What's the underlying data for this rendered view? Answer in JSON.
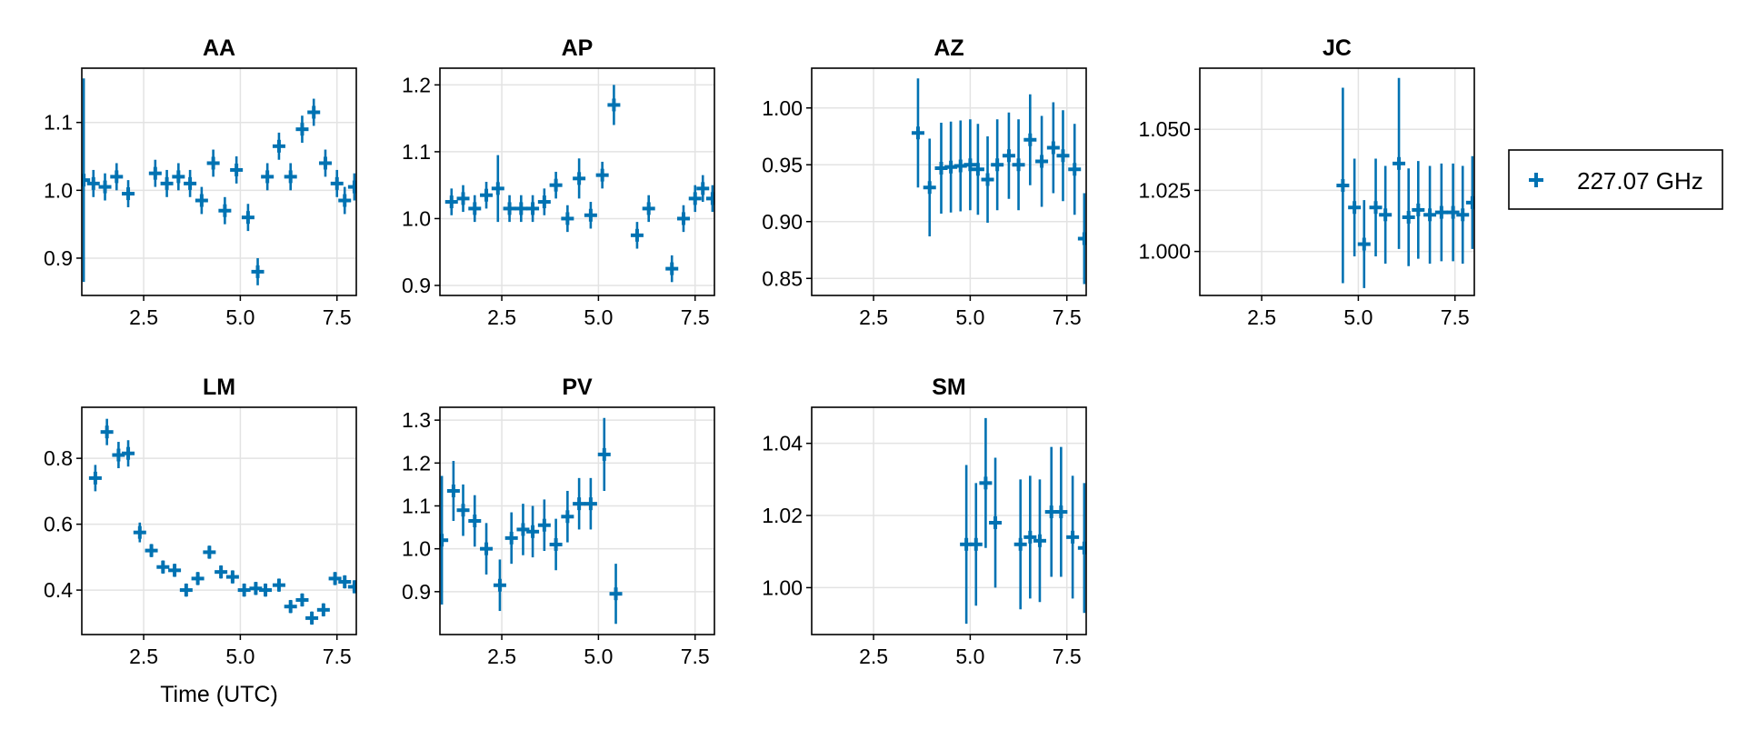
{
  "chart_data": {
    "type": "scatter",
    "xlabel": "Time (UTC)",
    "legend": {
      "placement": "right",
      "entries": [
        {
          "label": "227.07 GHz",
          "color": "#0072b2",
          "marker": "cross"
        }
      ]
    },
    "series_color": "#0072b2",
    "grid": true,
    "panels": [
      {
        "title": "AA",
        "xlim": [
          0.9,
          8.0
        ],
        "ylim": [
          0.845,
          1.18
        ],
        "xticks": [
          2.5,
          5.0,
          7.5
        ],
        "xtick_labels": [
          "2.5",
          "5.0",
          "7.5"
        ],
        "yticks": [
          0.9,
          1.0,
          1.1
        ],
        "ytick_labels": [
          "0.9",
          "1.0",
          "1.1"
        ],
        "points": [
          {
            "x": 0.95,
            "y": 1.015,
            "err": 0.15
          },
          {
            "x": 1.2,
            "y": 1.01,
            "err": 0.02
          },
          {
            "x": 1.5,
            "y": 1.005,
            "err": 0.02
          },
          {
            "x": 1.8,
            "y": 1.02,
            "err": 0.02
          },
          {
            "x": 2.1,
            "y": 0.995,
            "err": 0.02
          },
          {
            "x": 2.8,
            "y": 1.025,
            "err": 0.02
          },
          {
            "x": 3.1,
            "y": 1.01,
            "err": 0.02
          },
          {
            "x": 3.4,
            "y": 1.02,
            "err": 0.02
          },
          {
            "x": 3.7,
            "y": 1.01,
            "err": 0.02
          },
          {
            "x": 4.0,
            "y": 0.985,
            "err": 0.02
          },
          {
            "x": 4.3,
            "y": 1.04,
            "err": 0.02
          },
          {
            "x": 4.6,
            "y": 0.97,
            "err": 0.02
          },
          {
            "x": 4.9,
            "y": 1.03,
            "err": 0.02
          },
          {
            "x": 5.2,
            "y": 0.96,
            "err": 0.02
          },
          {
            "x": 5.45,
            "y": 0.88,
            "err": 0.02
          },
          {
            "x": 5.7,
            "y": 1.02,
            "err": 0.02
          },
          {
            "x": 6.0,
            "y": 1.065,
            "err": 0.02
          },
          {
            "x": 6.3,
            "y": 1.02,
            "err": 0.02
          },
          {
            "x": 6.6,
            "y": 1.09,
            "err": 0.02
          },
          {
            "x": 6.9,
            "y": 1.115,
            "err": 0.02
          },
          {
            "x": 7.2,
            "y": 1.04,
            "err": 0.02
          },
          {
            "x": 7.5,
            "y": 1.01,
            "err": 0.02
          },
          {
            "x": 7.7,
            "y": 0.985,
            "err": 0.02
          },
          {
            "x": 7.95,
            "y": 1.005,
            "err": 0.02
          }
        ]
      },
      {
        "title": "AP",
        "xlim": [
          0.9,
          8.0
        ],
        "ylim": [
          0.885,
          1.225
        ],
        "xticks": [
          2.5,
          5.0,
          7.5
        ],
        "xtick_labels": [
          "2.5",
          "5.0",
          "7.5"
        ],
        "yticks": [
          0.9,
          1.0,
          1.1,
          1.2
        ],
        "ytick_labels": [
          "0.9",
          "1.0",
          "1.1",
          "1.2"
        ],
        "points": [
          {
            "x": 1.2,
            "y": 1.025,
            "err": 0.02
          },
          {
            "x": 1.5,
            "y": 1.03,
            "err": 0.02
          },
          {
            "x": 1.8,
            "y": 1.015,
            "err": 0.02
          },
          {
            "x": 2.1,
            "y": 1.035,
            "err": 0.02
          },
          {
            "x": 2.4,
            "y": 1.045,
            "err": 0.05
          },
          {
            "x": 2.7,
            "y": 1.015,
            "err": 0.02
          },
          {
            "x": 3.0,
            "y": 1.015,
            "err": 0.02
          },
          {
            "x": 3.3,
            "y": 1.015,
            "err": 0.02
          },
          {
            "x": 3.6,
            "y": 1.025,
            "err": 0.02
          },
          {
            "x": 3.9,
            "y": 1.05,
            "err": 0.02
          },
          {
            "x": 4.2,
            "y": 1.0,
            "err": 0.02
          },
          {
            "x": 4.5,
            "y": 1.06,
            "err": 0.03
          },
          {
            "x": 4.8,
            "y": 1.005,
            "err": 0.02
          },
          {
            "x": 5.1,
            "y": 1.065,
            "err": 0.02
          },
          {
            "x": 5.4,
            "y": 1.17,
            "err": 0.03
          },
          {
            "x": 6.0,
            "y": 0.975,
            "err": 0.02
          },
          {
            "x": 6.3,
            "y": 1.015,
            "err": 0.02
          },
          {
            "x": 6.9,
            "y": 0.925,
            "err": 0.02
          },
          {
            "x": 7.2,
            "y": 1.0,
            "err": 0.02
          },
          {
            "x": 7.5,
            "y": 1.03,
            "err": 0.02
          },
          {
            "x": 7.7,
            "y": 1.045,
            "err": 0.02
          },
          {
            "x": 7.95,
            "y": 1.03,
            "err": 0.02
          }
        ]
      },
      {
        "title": "AZ",
        "xlim": [
          0.9,
          8.0
        ],
        "ylim": [
          0.835,
          1.035
        ],
        "xticks": [
          2.5,
          5.0,
          7.5
        ],
        "xtick_labels": [
          "2.5",
          "5.0",
          "7.5"
        ],
        "yticks": [
          0.85,
          0.9,
          0.95,
          1.0
        ],
        "ytick_labels": [
          "0.85",
          "0.90",
          "0.95",
          "1.00"
        ],
        "points": [
          {
            "x": 3.65,
            "y": 0.978,
            "err": 0.048
          },
          {
            "x": 3.95,
            "y": 0.93,
            "err": 0.043
          },
          {
            "x": 4.25,
            "y": 0.947,
            "err": 0.04
          },
          {
            "x": 4.5,
            "y": 0.948,
            "err": 0.04
          },
          {
            "x": 4.75,
            "y": 0.949,
            "err": 0.04
          },
          {
            "x": 5.0,
            "y": 0.95,
            "err": 0.04
          },
          {
            "x": 5.2,
            "y": 0.946,
            "err": 0.04
          },
          {
            "x": 5.45,
            "y": 0.937,
            "err": 0.038
          },
          {
            "x": 5.7,
            "y": 0.95,
            "err": 0.04
          },
          {
            "x": 6.0,
            "y": 0.958,
            "err": 0.038
          },
          {
            "x": 6.25,
            "y": 0.95,
            "err": 0.04
          },
          {
            "x": 6.55,
            "y": 0.972,
            "err": 0.04
          },
          {
            "x": 6.85,
            "y": 0.953,
            "err": 0.04
          },
          {
            "x": 7.15,
            "y": 0.965,
            "err": 0.04
          },
          {
            "x": 7.4,
            "y": 0.958,
            "err": 0.04
          },
          {
            "x": 7.7,
            "y": 0.946,
            "err": 0.04
          },
          {
            "x": 7.95,
            "y": 0.885,
            "err": 0.04
          }
        ]
      },
      {
        "title": "JC",
        "xlim": [
          0.9,
          8.0
        ],
        "ylim": [
          0.982,
          1.075
        ],
        "xticks": [
          2.5,
          5.0,
          7.5
        ],
        "xtick_labels": [
          "2.5",
          "5.0",
          "7.5"
        ],
        "yticks": [
          1.0,
          1.025,
          1.05
        ],
        "ytick_labels": [
          "1.000",
          "1.025",
          "1.050"
        ],
        "points": [
          {
            "x": 4.6,
            "y": 1.027,
            "err": 0.04
          },
          {
            "x": 4.9,
            "y": 1.018,
            "err": 0.02
          },
          {
            "x": 5.15,
            "y": 1.003,
            "err": 0.018
          },
          {
            "x": 5.45,
            "y": 1.018,
            "err": 0.02
          },
          {
            "x": 5.7,
            "y": 1.015,
            "err": 0.02
          },
          {
            "x": 6.05,
            "y": 1.036,
            "err": 0.035
          },
          {
            "x": 6.3,
            "y": 1.014,
            "err": 0.02
          },
          {
            "x": 6.55,
            "y": 1.017,
            "err": 0.02
          },
          {
            "x": 6.85,
            "y": 1.015,
            "err": 0.02
          },
          {
            "x": 7.15,
            "y": 1.016,
            "err": 0.02
          },
          {
            "x": 7.45,
            "y": 1.016,
            "err": 0.02
          },
          {
            "x": 7.7,
            "y": 1.015,
            "err": 0.02
          },
          {
            "x": 7.95,
            "y": 1.02,
            "err": 0.019
          }
        ]
      },
      {
        "title": "LM",
        "xlim": [
          0.9,
          8.0
        ],
        "ylim": [
          0.265,
          0.955
        ],
        "xticks": [
          2.5,
          5.0,
          7.5
        ],
        "xtick_labels": [
          "2.5",
          "5.0",
          "7.5"
        ],
        "yticks": [
          0.4,
          0.6,
          0.8
        ],
        "ytick_labels": [
          "0.4",
          "0.6",
          "0.8"
        ],
        "show_xlabel": true,
        "points": [
          {
            "x": 1.25,
            "y": 0.74,
            "err": 0.04
          },
          {
            "x": 1.55,
            "y": 0.88,
            "err": 0.04
          },
          {
            "x": 1.85,
            "y": 0.81,
            "err": 0.04
          },
          {
            "x": 2.1,
            "y": 0.815,
            "err": 0.04
          },
          {
            "x": 2.4,
            "y": 0.575,
            "err": 0.03
          },
          {
            "x": 2.7,
            "y": 0.52,
            "err": 0.02
          },
          {
            "x": 3.0,
            "y": 0.47,
            "err": 0.02
          },
          {
            "x": 3.3,
            "y": 0.46,
            "err": 0.02
          },
          {
            "x": 3.6,
            "y": 0.4,
            "err": 0.02
          },
          {
            "x": 3.9,
            "y": 0.435,
            "err": 0.02
          },
          {
            "x": 4.2,
            "y": 0.515,
            "err": 0.02
          },
          {
            "x": 4.5,
            "y": 0.455,
            "err": 0.02
          },
          {
            "x": 4.8,
            "y": 0.44,
            "err": 0.02
          },
          {
            "x": 5.1,
            "y": 0.4,
            "err": 0.02
          },
          {
            "x": 5.4,
            "y": 0.405,
            "err": 0.02
          },
          {
            "x": 5.65,
            "y": 0.4,
            "err": 0.02
          },
          {
            "x": 6.0,
            "y": 0.415,
            "err": 0.02
          },
          {
            "x": 6.3,
            "y": 0.35,
            "err": 0.02
          },
          {
            "x": 6.6,
            "y": 0.37,
            "err": 0.02
          },
          {
            "x": 6.85,
            "y": 0.315,
            "err": 0.02
          },
          {
            "x": 7.15,
            "y": 0.34,
            "err": 0.02
          },
          {
            "x": 7.45,
            "y": 0.435,
            "err": 0.02
          },
          {
            "x": 7.7,
            "y": 0.425,
            "err": 0.02
          },
          {
            "x": 7.95,
            "y": 0.41,
            "err": 0.02
          }
        ]
      },
      {
        "title": "PV",
        "xlim": [
          0.9,
          8.0
        ],
        "ylim": [
          0.8,
          1.33
        ],
        "xticks": [
          2.5,
          5.0,
          7.5
        ],
        "xtick_labels": [
          "2.5",
          "5.0",
          "7.5"
        ],
        "yticks": [
          0.9,
          1.0,
          1.1,
          1.2,
          1.3
        ],
        "ytick_labels": [
          "0.9",
          "1.0",
          "1.1",
          "1.2",
          "1.3"
        ],
        "points": [
          {
            "x": 0.95,
            "y": 1.02,
            "err": 0.15
          },
          {
            "x": 1.25,
            "y": 1.135,
            "err": 0.07
          },
          {
            "x": 1.5,
            "y": 1.09,
            "err": 0.06
          },
          {
            "x": 1.8,
            "y": 1.065,
            "err": 0.06
          },
          {
            "x": 2.1,
            "y": 1.0,
            "err": 0.06
          },
          {
            "x": 2.45,
            "y": 0.915,
            "err": 0.06
          },
          {
            "x": 2.75,
            "y": 1.025,
            "err": 0.06
          },
          {
            "x": 3.05,
            "y": 1.045,
            "err": 0.06
          },
          {
            "x": 3.3,
            "y": 1.04,
            "err": 0.06
          },
          {
            "x": 3.6,
            "y": 1.055,
            "err": 0.06
          },
          {
            "x": 3.9,
            "y": 1.01,
            "err": 0.06
          },
          {
            "x": 4.2,
            "y": 1.075,
            "err": 0.06
          },
          {
            "x": 4.5,
            "y": 1.105,
            "err": 0.06
          },
          {
            "x": 4.8,
            "y": 1.105,
            "err": 0.06
          },
          {
            "x": 5.15,
            "y": 1.22,
            "err": 0.085
          },
          {
            "x": 5.45,
            "y": 0.895,
            "err": 0.07
          }
        ]
      },
      {
        "title": "SM",
        "xlim": [
          0.9,
          8.0
        ],
        "ylim": [
          0.987,
          1.05
        ],
        "xticks": [
          2.5,
          5.0,
          7.5
        ],
        "xtick_labels": [
          "2.5",
          "5.0",
          "7.5"
        ],
        "yticks": [
          1.0,
          1.02,
          1.04
        ],
        "ytick_labels": [
          "1.00",
          "1.02",
          "1.04"
        ],
        "points": [
          {
            "x": 4.9,
            "y": 1.012,
            "err": 0.022
          },
          {
            "x": 5.15,
            "y": 1.012,
            "err": 0.017
          },
          {
            "x": 5.4,
            "y": 1.029,
            "err": 0.018
          },
          {
            "x": 5.65,
            "y": 1.018,
            "err": 0.018
          },
          {
            "x": 6.3,
            "y": 1.012,
            "err": 0.018
          },
          {
            "x": 6.55,
            "y": 1.014,
            "err": 0.017
          },
          {
            "x": 6.8,
            "y": 1.013,
            "err": 0.017
          },
          {
            "x": 7.1,
            "y": 1.021,
            "err": 0.018
          },
          {
            "x": 7.35,
            "y": 1.021,
            "err": 0.018
          },
          {
            "x": 7.65,
            "y": 1.014,
            "err": 0.017
          },
          {
            "x": 7.95,
            "y": 1.011,
            "err": 0.018
          }
        ]
      }
    ]
  }
}
